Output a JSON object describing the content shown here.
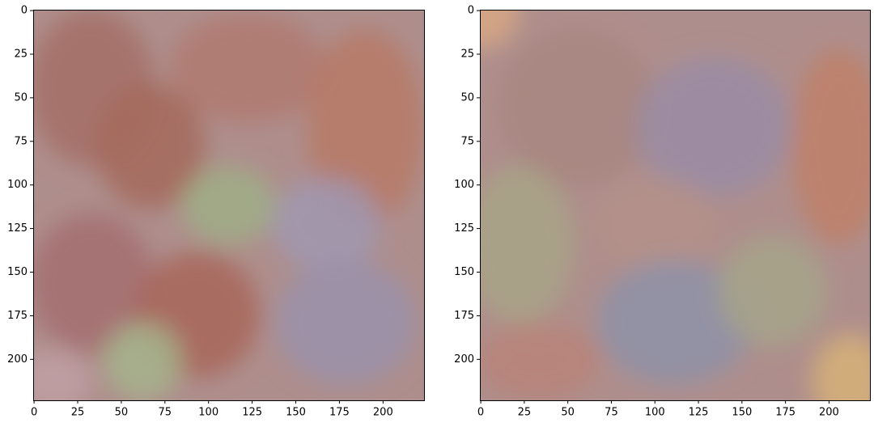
{
  "chart_data": [
    {
      "type": "image",
      "xlim": [
        -0.5,
        223.5
      ],
      "ylim": [
        223.5,
        -0.5
      ],
      "xticks": [
        0,
        25,
        50,
        75,
        100,
        125,
        150,
        175,
        200
      ],
      "yticks": [
        0,
        25,
        50,
        75,
        100,
        125,
        150,
        175,
        200
      ]
    },
    {
      "type": "image",
      "xlim": [
        -0.5,
        223.5
      ],
      "ylim": [
        223.5,
        -0.5
      ],
      "xticks": [
        0,
        25,
        50,
        75,
        100,
        125,
        150,
        175,
        200
      ],
      "yticks": [
        0,
        25,
        50,
        75,
        100,
        125,
        150,
        175,
        200
      ]
    }
  ]
}
